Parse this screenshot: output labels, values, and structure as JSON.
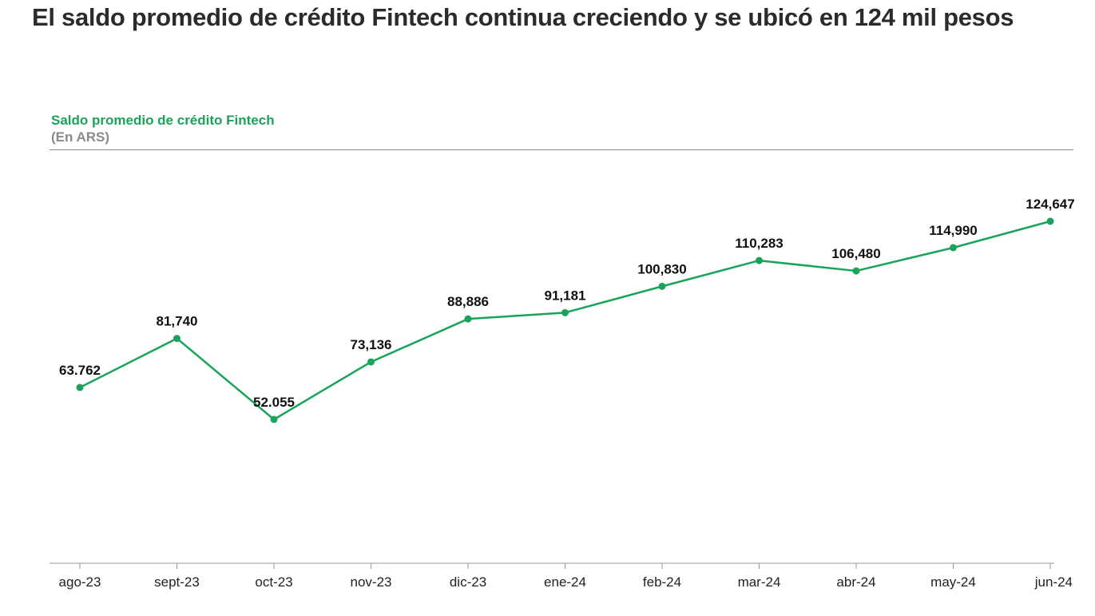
{
  "title": "El saldo promedio de crédito Fintech continua creciendo y se ubicó en 124 mil pesos",
  "chart_data": {
    "type": "line",
    "title": "Saldo promedio de crédito Fintech",
    "subtitle": "(En ARS)",
    "categories": [
      "ago-23",
      "sept-23",
      "oct-23",
      "nov-23",
      "dic-23",
      "ene-24",
      "feb-24",
      "mar-24",
      "abr-24",
      "may-24",
      "jun-24"
    ],
    "series": [
      {
        "values": [
          63762,
          81740,
          52055,
          73136,
          88886,
          91181,
          100830,
          110283,
          106480,
          114990,
          124647
        ],
        "labels": [
          "63.762",
          "81,740",
          "52.055",
          "73,136",
          "88,886",
          "91,181",
          "100,830",
          "110,283",
          "106,480",
          "114,990",
          "124,647"
        ],
        "color": "#1aa35a"
      }
    ],
    "grid": false,
    "legend": "none"
  }
}
